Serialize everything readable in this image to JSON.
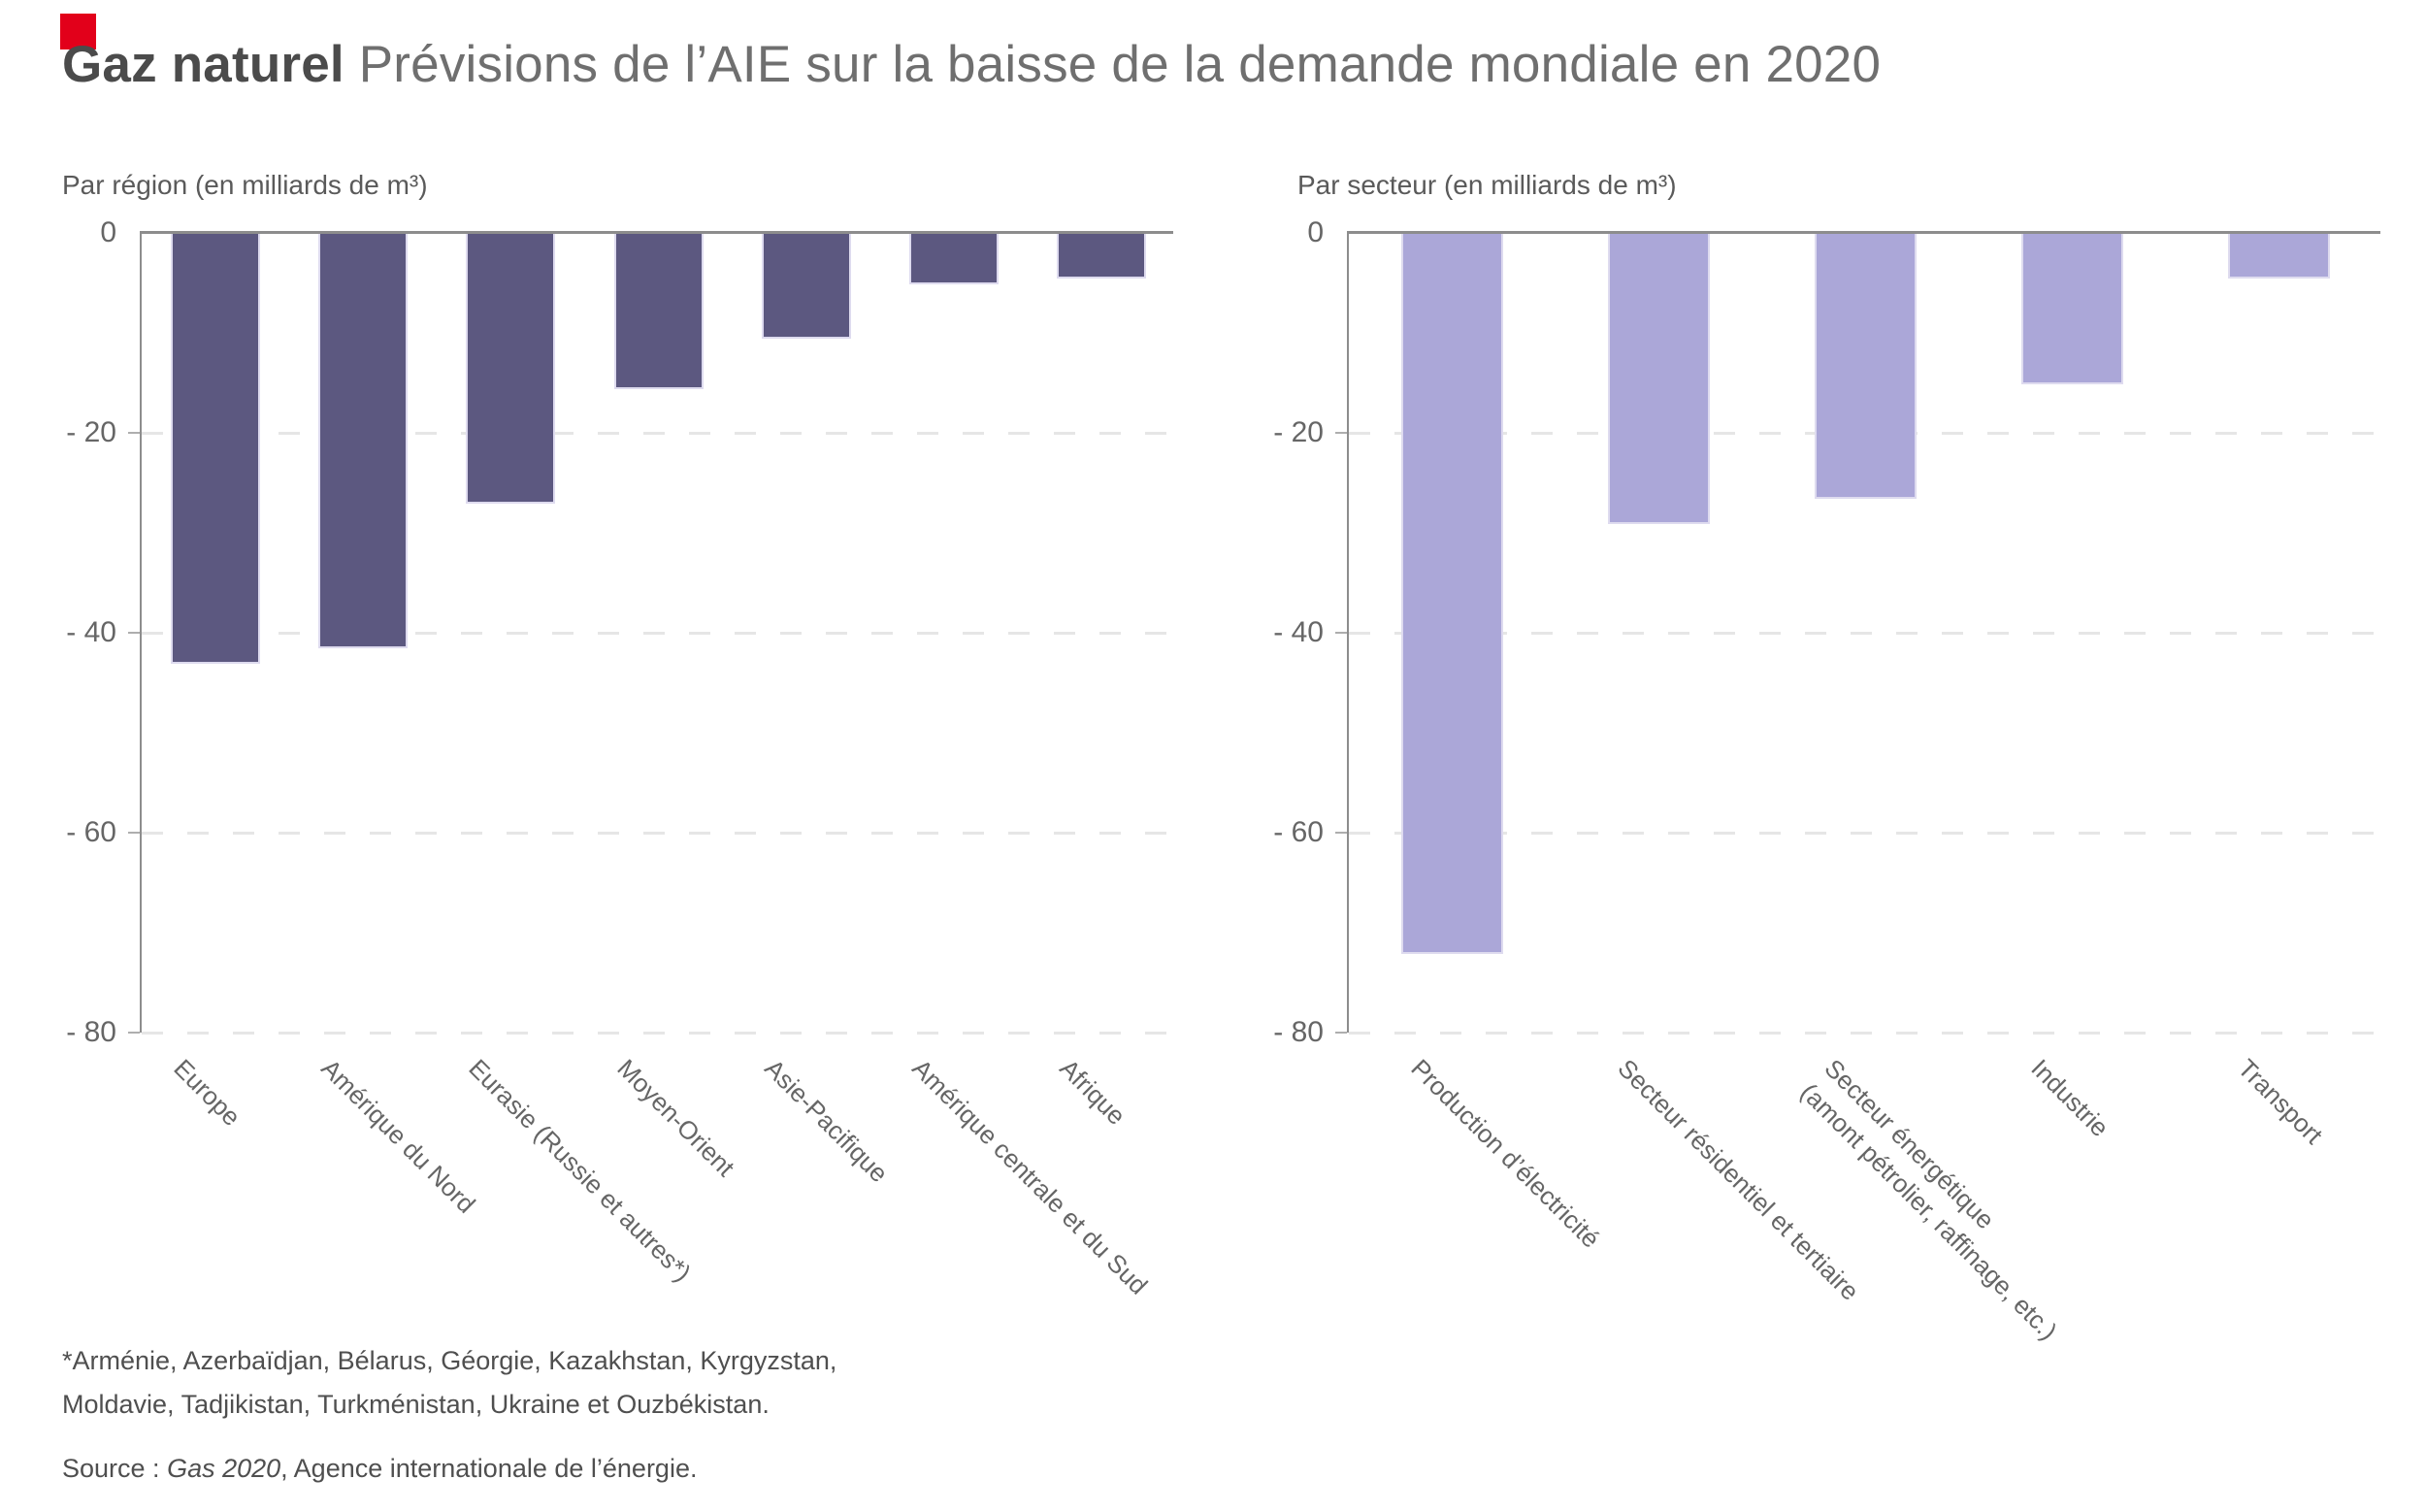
{
  "brand": {
    "color": "#e2001a"
  },
  "title": {
    "bold": "Gaz naturel",
    "rest": " Prévisions de l’AIE sur la baisse de la demande mondiale en 2020"
  },
  "chart_data": [
    {
      "type": "bar",
      "title": "Par région (en milliards de m³)",
      "categories": [
        "Europe",
        "Amérique du Nord",
        "Eurasie (Russie et autres*)",
        "Moyen-Orient",
        "Asie-Pacifique",
        "Amérique centrale et du Sud",
        "Afrique"
      ],
      "values": [
        -43,
        -41.5,
        -27,
        -15.5,
        -10.5,
        -5,
        -4.5
      ],
      "bar_color": "#5c5880",
      "ylim": [
        -80,
        0
      ],
      "yticks": [
        {
          "value": 0,
          "label": "0"
        },
        {
          "value": -20,
          "label": "- 20"
        },
        {
          "value": -40,
          "label": "- 40"
        },
        {
          "value": -60,
          "label": "- 60"
        },
        {
          "value": -80,
          "label": "- 80"
        }
      ],
      "grid": "dashed-horizontal",
      "legend": "none"
    },
    {
      "type": "bar",
      "title": "Par secteur (en milliards de m³)",
      "categories": [
        "Production d’électricité",
        "Secteur résidentiel et tertiaire",
        "Secteur énergétique\n(amont pétrolier, raffinage, etc.)",
        "Industrie",
        "Transport"
      ],
      "values": [
        -72,
        -29,
        -26.5,
        -15,
        -4.5
      ],
      "bar_color": "#aba7d8",
      "ylim": [
        -80,
        0
      ],
      "yticks": [
        {
          "value": 0,
          "label": "0"
        },
        {
          "value": -20,
          "label": "- 20"
        },
        {
          "value": -40,
          "label": "- 40"
        },
        {
          "value": -60,
          "label": "- 60"
        },
        {
          "value": -80,
          "label": "- 80"
        }
      ],
      "grid": "dashed-horizontal",
      "legend": "none"
    }
  ],
  "footnote": {
    "line1": "*Arménie, Azerbaïdjan, Bélarus, Géorgie, Kazakhstan, Kyrgyzstan,",
    "line2": "Moldavie, Tadjikistan, Turkménistan, Ukraine et Ouzbékistan."
  },
  "source": {
    "prefix": "Source : ",
    "italic": "Gas 2020",
    "suffix": ", Agence internationale de l’énergie."
  }
}
